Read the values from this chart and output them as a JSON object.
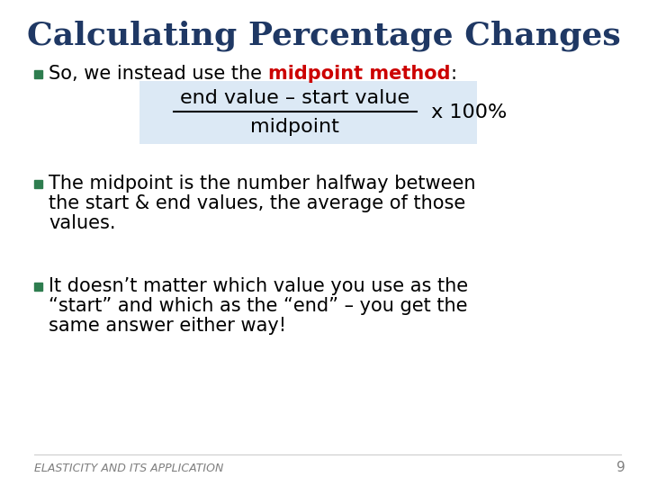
{
  "title": "Calculating Percentage Changes",
  "title_color": "#1F3864",
  "title_fontsize": 26,
  "background_color": "#FFFFFF",
  "bullet_color": "#2E7D4F",
  "bullet1_normal": "So, we instead use the ",
  "bullet1_bold_red": "midpoint method",
  "bullet1_colon": ":",
  "formula_numerator": "end value – start value",
  "formula_denominator": "midpoint",
  "formula_multiplier": " x 100%",
  "formula_box_color": "#DCE9F5",
  "bullet2_line1": "The midpoint is the number halfway between",
  "bullet2_line2": "the start & end values, the average of those",
  "bullet2_line3": "values.",
  "bullet3_line1": "It doesn’t matter which value you use as the",
  "bullet3_line2": "“start” and which as the “end” – you get the",
  "bullet3_line3": "same answer either way!",
  "footer_text": "ELASTICITY AND ITS APPLICATION",
  "page_number": "9",
  "footer_color": "#7F7F7F",
  "text_color": "#000000",
  "text_fontsize": 15,
  "formula_fontsize": 16
}
